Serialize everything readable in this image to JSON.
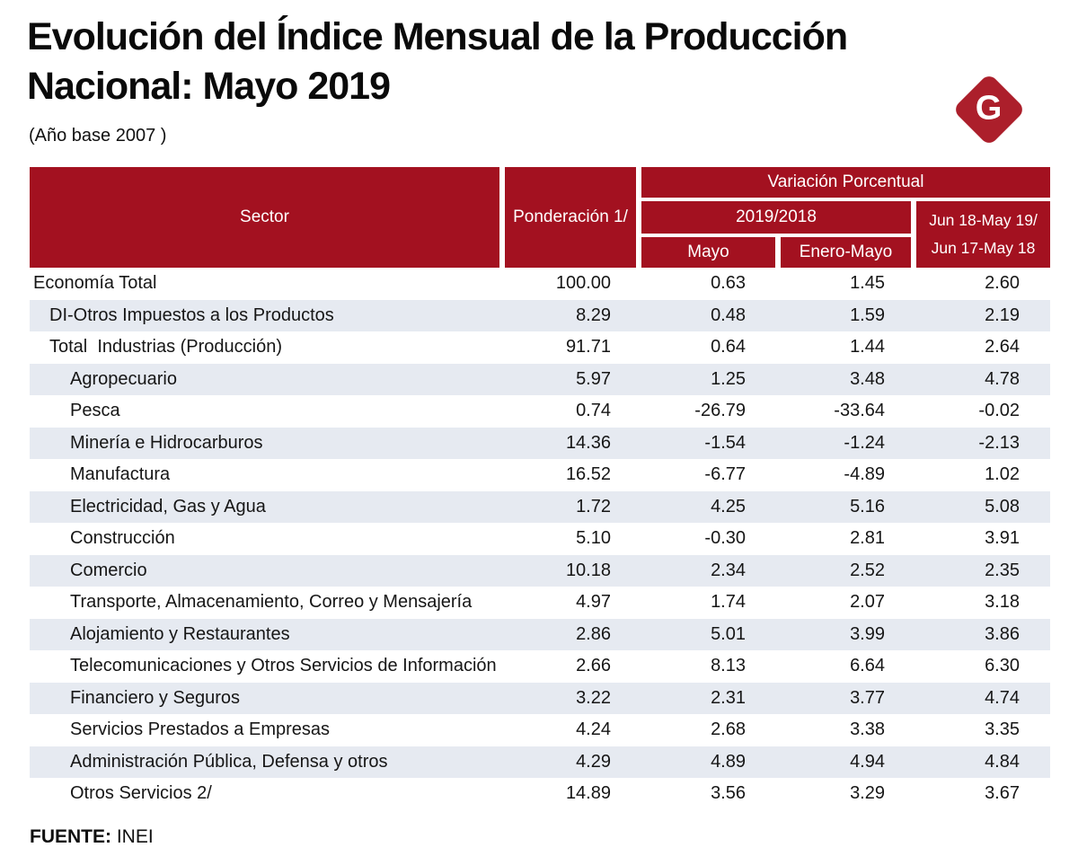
{
  "header": {
    "title_line1": "Evolución del Índice Mensual de la Producción",
    "title_line2": "Nacional: Mayo 2019",
    "subtitle": "(Año base 2007 )",
    "logo_letter": "G"
  },
  "colors": {
    "header_red": "#A31120",
    "logo_red": "#AC1F2B",
    "row_alt_bg": "#E6EAF1",
    "text": "#161616"
  },
  "chart_data": {
    "type": "table",
    "title": "Evolución del Índice Mensual de la Producción Nacional: Mayo 2019",
    "subtitle": "(Año base 2007 )",
    "columns": {
      "sector": "Sector",
      "ponderacion": "Ponderación 1/",
      "variacion_group": "Variación Porcentual",
      "period_group": "2019/2018",
      "mayo": "Mayo",
      "enero_mayo": "Enero-Mayo",
      "anual_line1": "Jun 18-May 19/",
      "anual_line2": "Jun 17-May 18"
    },
    "rows": [
      {
        "sector": "Economía Total",
        "indent": 0,
        "ponderacion": "100.00",
        "mayo": "0.63",
        "enero_mayo": "1.45",
        "anual": "2.60"
      },
      {
        "sector": "DI-Otros Impuestos a los Productos",
        "indent": 1,
        "ponderacion": "8.29",
        "mayo": "0.48",
        "enero_mayo": "1.59",
        "anual": "2.19"
      },
      {
        "sector": "Total  Industrias (Producción)",
        "indent": 1,
        "ponderacion": "91.71",
        "mayo": "0.64",
        "enero_mayo": "1.44",
        "anual": "2.64"
      },
      {
        "sector": "Agropecuario",
        "indent": 2,
        "ponderacion": "5.97",
        "mayo": "1.25",
        "enero_mayo": "3.48",
        "anual": "4.78"
      },
      {
        "sector": "Pesca",
        "indent": 2,
        "ponderacion": "0.74",
        "mayo": "-26.79",
        "enero_mayo": "-33.64",
        "anual": "-0.02"
      },
      {
        "sector": "Minería e Hidrocarburos",
        "indent": 2,
        "ponderacion": "14.36",
        "mayo": "-1.54",
        "enero_mayo": "-1.24",
        "anual": "-2.13"
      },
      {
        "sector": "Manufactura",
        "indent": 2,
        "ponderacion": "16.52",
        "mayo": "-6.77",
        "enero_mayo": "-4.89",
        "anual": "1.02"
      },
      {
        "sector": "Electricidad, Gas y Agua",
        "indent": 2,
        "ponderacion": "1.72",
        "mayo": "4.25",
        "enero_mayo": "5.16",
        "anual": "5.08"
      },
      {
        "sector": "Construcción",
        "indent": 2,
        "ponderacion": "5.10",
        "mayo": "-0.30",
        "enero_mayo": "2.81",
        "anual": "3.91"
      },
      {
        "sector": "Comercio",
        "indent": 2,
        "ponderacion": "10.18",
        "mayo": "2.34",
        "enero_mayo": "2.52",
        "anual": "2.35"
      },
      {
        "sector": "Transporte, Almacenamiento, Correo y Mensajería",
        "indent": 2,
        "ponderacion": "4.97",
        "mayo": "1.74",
        "enero_mayo": "2.07",
        "anual": "3.18"
      },
      {
        "sector": "Alojamiento y Restaurantes",
        "indent": 2,
        "ponderacion": "2.86",
        "mayo": "5.01",
        "enero_mayo": "3.99",
        "anual": "3.86"
      },
      {
        "sector": "Telecomunicaciones y Otros Servicios de Información",
        "indent": 2,
        "ponderacion": "2.66",
        "mayo": "8.13",
        "enero_mayo": "6.64",
        "anual": "6.30"
      },
      {
        "sector": "Financiero y Seguros",
        "indent": 2,
        "ponderacion": "3.22",
        "mayo": "2.31",
        "enero_mayo": "3.77",
        "anual": "4.74"
      },
      {
        "sector": "Servicios Prestados a Empresas",
        "indent": 2,
        "ponderacion": "4.24",
        "mayo": "2.68",
        "enero_mayo": "3.38",
        "anual": "3.35"
      },
      {
        "sector": "Administración Pública, Defensa y otros",
        "indent": 2,
        "ponderacion": "4.29",
        "mayo": "4.89",
        "enero_mayo": "4.94",
        "anual": "4.84"
      },
      {
        "sector": "Otros Servicios 2/",
        "indent": 2,
        "ponderacion": "14.89",
        "mayo": "3.56",
        "enero_mayo": "3.29",
        "anual": "3.67"
      }
    ]
  },
  "footer": {
    "source_label": "FUENTE:",
    "source_value": "INEI"
  }
}
